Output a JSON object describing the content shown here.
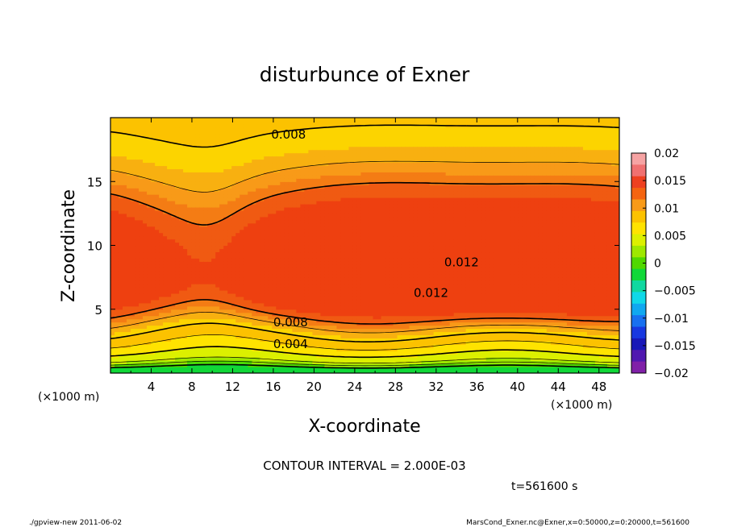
{
  "chart_data": {
    "type": "contour",
    "title": "disturbunce of Exner",
    "xlabel": "X-coordinate",
    "ylabel": "Z-coordinate",
    "x_unit_left": "(×1000 m)",
    "x_unit_right": "(×1000 m)",
    "xlim": [
      0,
      50
    ],
    "ylim": [
      0,
      20
    ],
    "x_ticks": [
      4,
      8,
      12,
      16,
      20,
      24,
      28,
      32,
      36,
      40,
      44,
      48
    ],
    "y_ticks": [
      5,
      10,
      15
    ],
    "contour_interval_text": "CONTOUR INTERVAL = 2.000E-03",
    "time_text": "t=561600 s",
    "contour_labels": [
      {
        "text": "0.008",
        "x": 17.5,
        "y": 18.6
      },
      {
        "text": "0.012",
        "x": 34.5,
        "y": 8.6
      },
      {
        "text": "0.012",
        "x": 31.5,
        "y": 6.2
      },
      {
        "text": "0.008",
        "x": 17.7,
        "y": 3.9
      },
      {
        "text": "0.004",
        "x": 17.7,
        "y": 2.2
      }
    ],
    "colorbar": {
      "ticks": [
        "0.02",
        "0.015",
        "0.01",
        "0.005",
        "0",
        "−0.005",
        "−0.01",
        "−0.015",
        "−0.02"
      ],
      "colors": [
        "#f6a3a3",
        "#f07070",
        "#ee4020",
        "#f46410",
        "#f89a18",
        "#fcc200",
        "#ffe300",
        "#dcf000",
        "#9ee800",
        "#50d800",
        "#10d838",
        "#10d8a0",
        "#10d8e8",
        "#10a8f0",
        "#1870f0",
        "#1838e0",
        "#1818b8",
        "#5018b0",
        "#8020a8"
      ]
    },
    "fill_levels": [
      {
        "min": -0.002,
        "color": "#10d838"
      },
      {
        "min": 0.0,
        "color": "#50d800"
      },
      {
        "min": 0.001,
        "color": "#9ee800"
      },
      {
        "min": 0.002,
        "color": "#dcf000"
      },
      {
        "min": 0.004,
        "color": "#ffe300"
      },
      {
        "min": 0.006,
        "color": "#fcc200"
      },
      {
        "min": 0.008,
        "color": "#fcd400"
      },
      {
        "min": 0.009,
        "color": "#f8b010"
      },
      {
        "min": 0.01,
        "color": "#f89a18"
      },
      {
        "min": 0.011,
        "color": "#f47c14"
      },
      {
        "min": 0.012,
        "color": "#f05a12"
      },
      {
        "min": 0.0136,
        "color": "#ee4010"
      }
    ]
  },
  "footer": {
    "left": "./gpview-new   2011-06-02",
    "right": "MarsCond_Exner.nc@Exner,x=0:50000,z=0:20000,t=561600"
  }
}
